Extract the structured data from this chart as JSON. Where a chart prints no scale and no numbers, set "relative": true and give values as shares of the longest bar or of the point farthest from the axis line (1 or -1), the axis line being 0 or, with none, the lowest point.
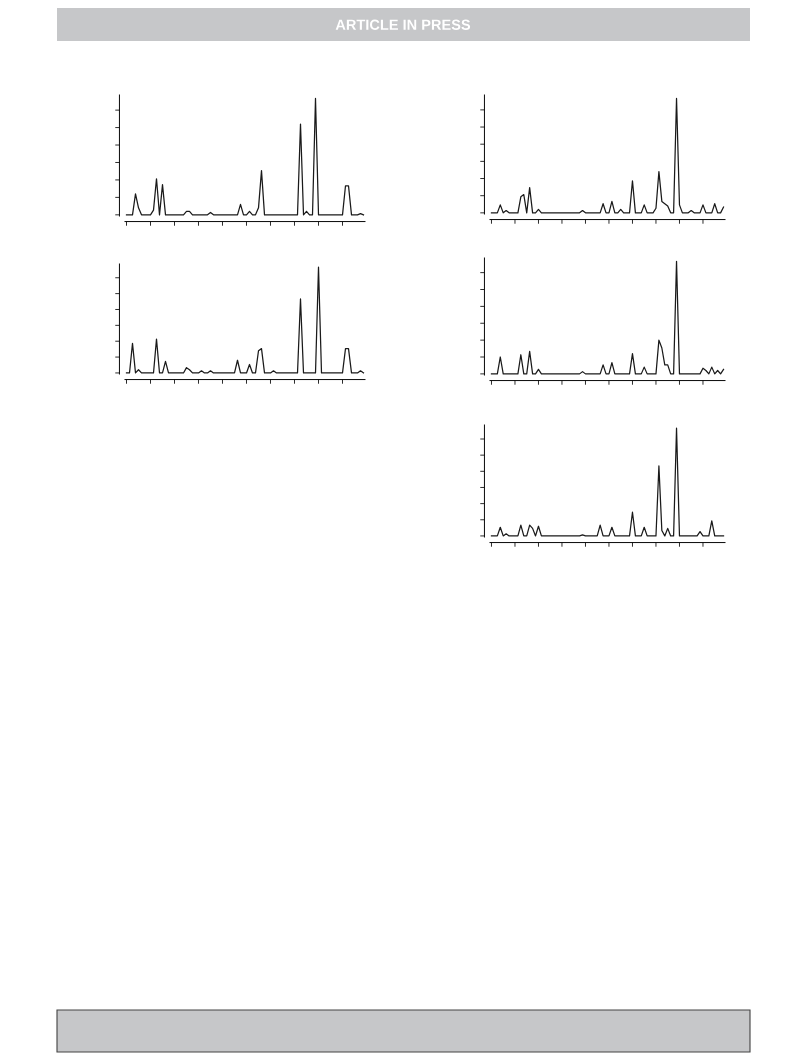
{
  "chart_data": [
    {
      "type": "line",
      "annotations": [
        "ARTICLE IN PRESS"
      ],
      "categories": [
        null,
        null,
        null,
        null,
        null,
        null,
        null,
        null,
        null,
        null,
        null,
        null,
        null,
        null,
        null,
        null,
        null,
        null,
        null,
        null,
        null,
        null,
        null,
        null,
        null,
        null,
        null,
        null,
        null,
        null,
        null,
        null,
        null,
        null,
        null,
        null,
        null,
        null,
        null,
        null,
        null,
        null,
        null,
        null,
        null,
        null,
        null,
        null,
        null,
        null,
        null,
        null,
        null,
        null,
        null,
        null,
        null,
        null,
        null,
        null,
        null,
        null,
        null,
        null,
        null,
        null,
        null,
        null,
        null,
        null,
        null,
        null,
        null,
        null,
        null,
        null,
        null,
        null,
        null,
        null
      ],
      "relative": true,
      "grid": false,
      "legend": false,
      "series": [
        {
          "color": "#1a1a1a",
          "values": [
            0,
            0,
            0,
            0.18,
            0.06,
            0,
            0,
            0,
            0,
            0.04,
            0.31,
            0,
            0.26,
            0,
            0,
            0,
            0,
            0,
            0,
            0,
            0.03,
            0.03,
            0,
            0,
            0,
            0,
            0,
            0,
            0.02,
            0,
            0,
            0,
            0,
            0,
            0,
            0,
            0,
            0,
            0.09,
            0,
            0,
            0.03,
            0,
            0,
            0.06,
            0.38,
            0,
            0,
            0,
            0,
            0,
            0,
            0,
            0,
            0,
            0,
            0,
            0,
            0.78,
            0,
            0.03,
            0,
            0,
            1,
            0,
            0,
            0,
            0,
            0,
            0,
            0,
            0,
            0,
            0.25,
            0.25,
            0,
            0,
            0,
            0.01,
            0
          ]
        }
      ]
    },
    {
      "type": "line",
      "categories": [
        null,
        null,
        null,
        null,
        null,
        null,
        null,
        null,
        null,
        null,
        null,
        null,
        null,
        null,
        null,
        null,
        null,
        null,
        null,
        null,
        null,
        null,
        null,
        null,
        null,
        null,
        null,
        null,
        null,
        null,
        null,
        null,
        null,
        null,
        null,
        null,
        null,
        null,
        null,
        null,
        null,
        null,
        null,
        null,
        null,
        null,
        null,
        null,
        null,
        null,
        null,
        null,
        null,
        null,
        null,
        null,
        null,
        null,
        null,
        null,
        null,
        null,
        null,
        null,
        null,
        null,
        null,
        null,
        null,
        null,
        null,
        null,
        null,
        null,
        null,
        null,
        null,
        null,
        null,
        null
      ],
      "relative": true,
      "grid": false,
      "legend": false,
      "series": [
        {
          "color": "#1a1a1a",
          "values": [
            0,
            0,
            0.28,
            0,
            0.03,
            0,
            0,
            0,
            0,
            0,
            0.32,
            0,
            0,
            0.11,
            0,
            0,
            0,
            0,
            0,
            0,
            0.05,
            0.03,
            0,
            0,
            0,
            0.02,
            0,
            0,
            0.02,
            0,
            0,
            0,
            0,
            0,
            0,
            0,
            0,
            0.12,
            0,
            0,
            0,
            0.08,
            0,
            0,
            0.21,
            0.23,
            0,
            0,
            0,
            0.02,
            0,
            0,
            0,
            0,
            0,
            0,
            0,
            0,
            0.7,
            0,
            0,
            0,
            0,
            0,
            1,
            0,
            0,
            0,
            0,
            0,
            0,
            0,
            0,
            0.23,
            0.23,
            0,
            0,
            0,
            0.02,
            0
          ]
        }
      ]
    },
    {
      "type": "line",
      "categories": [
        null,
        null,
        null,
        null,
        null,
        null,
        null,
        null,
        null,
        null,
        null,
        null,
        null,
        null,
        null,
        null,
        null,
        null,
        null,
        null,
        null,
        null,
        null,
        null,
        null,
        null,
        null,
        null,
        null,
        null,
        null,
        null,
        null,
        null,
        null,
        null,
        null,
        null,
        null,
        null,
        null,
        null,
        null,
        null,
        null,
        null,
        null,
        null,
        null,
        null,
        null,
        null,
        null,
        null,
        null,
        null,
        null,
        null,
        null,
        null,
        null,
        null,
        null,
        null,
        null,
        null,
        null,
        null,
        null,
        null,
        null,
        null,
        null,
        null,
        null,
        null,
        null,
        null,
        null,
        null
      ],
      "relative": true,
      "grid": false,
      "legend": false,
      "series": [
        {
          "color": "#1a1a1a",
          "values": [
            0,
            0,
            0,
            0.07,
            0,
            0.02,
            0,
            0,
            0,
            0,
            0.14,
            0.16,
            0,
            0.22,
            0,
            0,
            0.03,
            0,
            0,
            0,
            0,
            0,
            0,
            0,
            0,
            0,
            0,
            0,
            0,
            0,
            0,
            0.02,
            0,
            0,
            0,
            0,
            0,
            0,
            0.08,
            0,
            0,
            0.1,
            0,
            0,
            0.03,
            0,
            0,
            0,
            0.28,
            0,
            0,
            0,
            0.07,
            0,
            0,
            0,
            0.04,
            0.36,
            0.1,
            0.08,
            0.06,
            0,
            0,
            1,
            0.07,
            0,
            0,
            0,
            0.02,
            0,
            0,
            0,
            0.07,
            0,
            0,
            0,
            0.08,
            0,
            0,
            0.05
          ]
        }
      ]
    },
    {
      "type": "line",
      "categories": [
        null,
        null,
        null,
        null,
        null,
        null,
        null,
        null,
        null,
        null,
        null,
        null,
        null,
        null,
        null,
        null,
        null,
        null,
        null,
        null,
        null,
        null,
        null,
        null,
        null,
        null,
        null,
        null,
        null,
        null,
        null,
        null,
        null,
        null,
        null,
        null,
        null,
        null,
        null,
        null,
        null,
        null,
        null,
        null,
        null,
        null,
        null,
        null,
        null,
        null,
        null,
        null,
        null,
        null,
        null,
        null,
        null,
        null,
        null,
        null,
        null,
        null,
        null,
        null,
        null,
        null,
        null,
        null,
        null,
        null,
        null,
        null,
        null,
        null,
        null,
        null,
        null,
        null,
        null,
        null
      ],
      "relative": true,
      "grid": false,
      "legend": false,
      "series": [
        {
          "color": "#1a1a1a",
          "values": [
            0,
            0,
            0,
            0.15,
            0,
            0,
            0,
            0,
            0,
            0,
            0.17,
            0,
            0,
            0.2,
            0,
            0,
            0.04,
            0,
            0,
            0,
            0,
            0,
            0,
            0,
            0,
            0,
            0,
            0,
            0,
            0,
            0,
            0.02,
            0,
            0,
            0,
            0,
            0,
            0,
            0.08,
            0,
            0,
            0.1,
            0,
            0,
            0,
            0,
            0,
            0,
            0.18,
            0,
            0,
            0,
            0.06,
            0,
            0,
            0,
            0,
            0.3,
            0.23,
            0.08,
            0.08,
            0,
            0,
            1,
            0,
            0,
            0,
            0,
            0,
            0,
            0,
            0,
            0.05,
            0.03,
            0,
            0.06,
            0,
            0.03,
            0,
            0.04
          ]
        }
      ]
    },
    {
      "type": "line",
      "categories": [
        null,
        null,
        null,
        null,
        null,
        null,
        null,
        null,
        null,
        null,
        null,
        null,
        null,
        null,
        null,
        null,
        null,
        null,
        null,
        null,
        null,
        null,
        null,
        null,
        null,
        null,
        null,
        null,
        null,
        null,
        null,
        null,
        null,
        null,
        null,
        null,
        null,
        null,
        null,
        null,
        null,
        null,
        null,
        null,
        null,
        null,
        null,
        null,
        null,
        null,
        null,
        null,
        null,
        null,
        null,
        null,
        null,
        null,
        null,
        null,
        null,
        null,
        null,
        null,
        null,
        null,
        null,
        null,
        null,
        null,
        null,
        null,
        null,
        null,
        null,
        null,
        null,
        null,
        null,
        null
      ],
      "relative": true,
      "grid": false,
      "legend": false,
      "series": [
        {
          "color": "#1a1a1a",
          "values": [
            0,
            0,
            0,
            0.08,
            0,
            0.02,
            0,
            0,
            0,
            0,
            0.1,
            0,
            0,
            0.1,
            0.07,
            0,
            0.09,
            0,
            0,
            0,
            0,
            0,
            0,
            0,
            0,
            0,
            0,
            0,
            0,
            0,
            0,
            0.01,
            0,
            0,
            0,
            0,
            0,
            0.1,
            0,
            0,
            0,
            0.08,
            0,
            0,
            0,
            0,
            0,
            0,
            0.22,
            0,
            0,
            0,
            0.08,
            0,
            0,
            0,
            0,
            0.65,
            0.05,
            0,
            0.07,
            0,
            0,
            1,
            0,
            0,
            0,
            0,
            0,
            0,
            0,
            0.04,
            0,
            0,
            0,
            0.14,
            0,
            0,
            0,
            0
          ]
        }
      ]
    }
  ]
}
